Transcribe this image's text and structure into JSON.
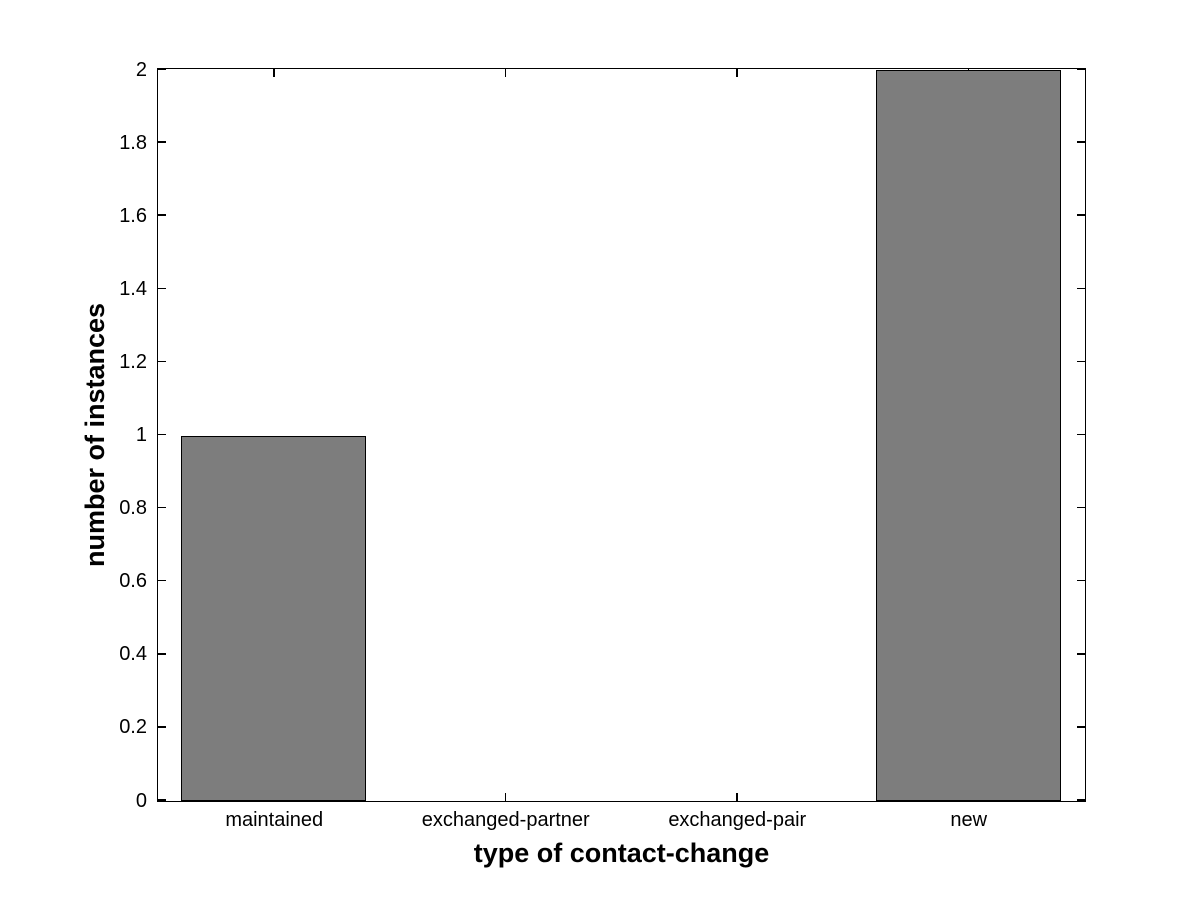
{
  "chart_data": {
    "type": "bar",
    "title": "",
    "xlabel": "type of contact-change",
    "ylabel": "number of instances",
    "categories": [
      "maintained",
      "exchanged-partner",
      "exchanged-pair",
      "new"
    ],
    "values": [
      1,
      0,
      0,
      2
    ],
    "ylim": [
      0,
      2
    ],
    "ytick_values": [
      0,
      0.2,
      0.4,
      0.6,
      0.8,
      1,
      1.2,
      1.4,
      1.6,
      1.8,
      2
    ],
    "ytick_labels": [
      "0",
      "0.2",
      "0.4",
      "0.6",
      "0.8",
      "1",
      "1.2",
      "1.4",
      "1.6",
      "1.8",
      "2"
    ],
    "bar_width_fraction": 0.8,
    "grid": false,
    "legend": "none",
    "box": true,
    "colors": {
      "bar_fill": "#7d7d7d",
      "bar_edge": "#000000",
      "axis": "#000000",
      "text": "#000000",
      "background": "#ffffff"
    }
  }
}
